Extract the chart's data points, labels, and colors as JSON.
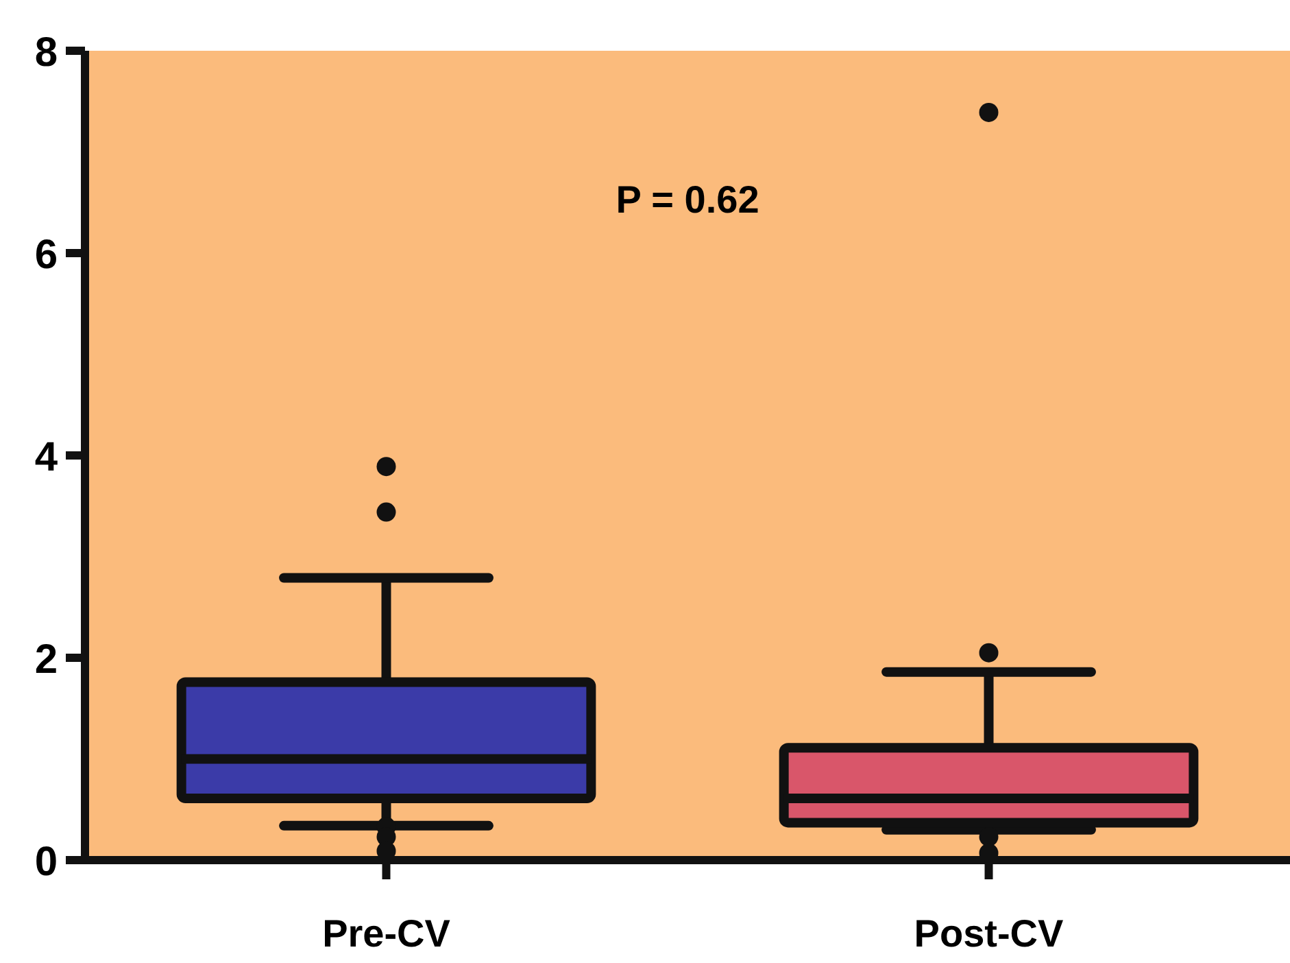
{
  "chart_data": {
    "type": "box",
    "categories": [
      "Pre-CV",
      "Post-CV"
    ],
    "boxes": [
      {
        "low": 0.34,
        "q1": 0.61,
        "median": 1.0,
        "q3": 1.76,
        "high": 2.79,
        "outliers": [
          3.89,
          3.44,
          0.33,
          0.23,
          0.09
        ]
      },
      {
        "low": 0.3,
        "q1": 0.37,
        "median": 0.61,
        "q3": 1.11,
        "high": 1.86,
        "outliers": [
          7.39,
          2.05,
          0.23,
          0.07
        ]
      }
    ],
    "colors": [
      "#3b3ba8",
      "#d9566a"
    ],
    "ylim": [
      0,
      8
    ],
    "yticks": [
      0,
      2,
      4,
      6,
      8
    ],
    "grid": false,
    "annotations": [
      "P = 0.62"
    ]
  }
}
